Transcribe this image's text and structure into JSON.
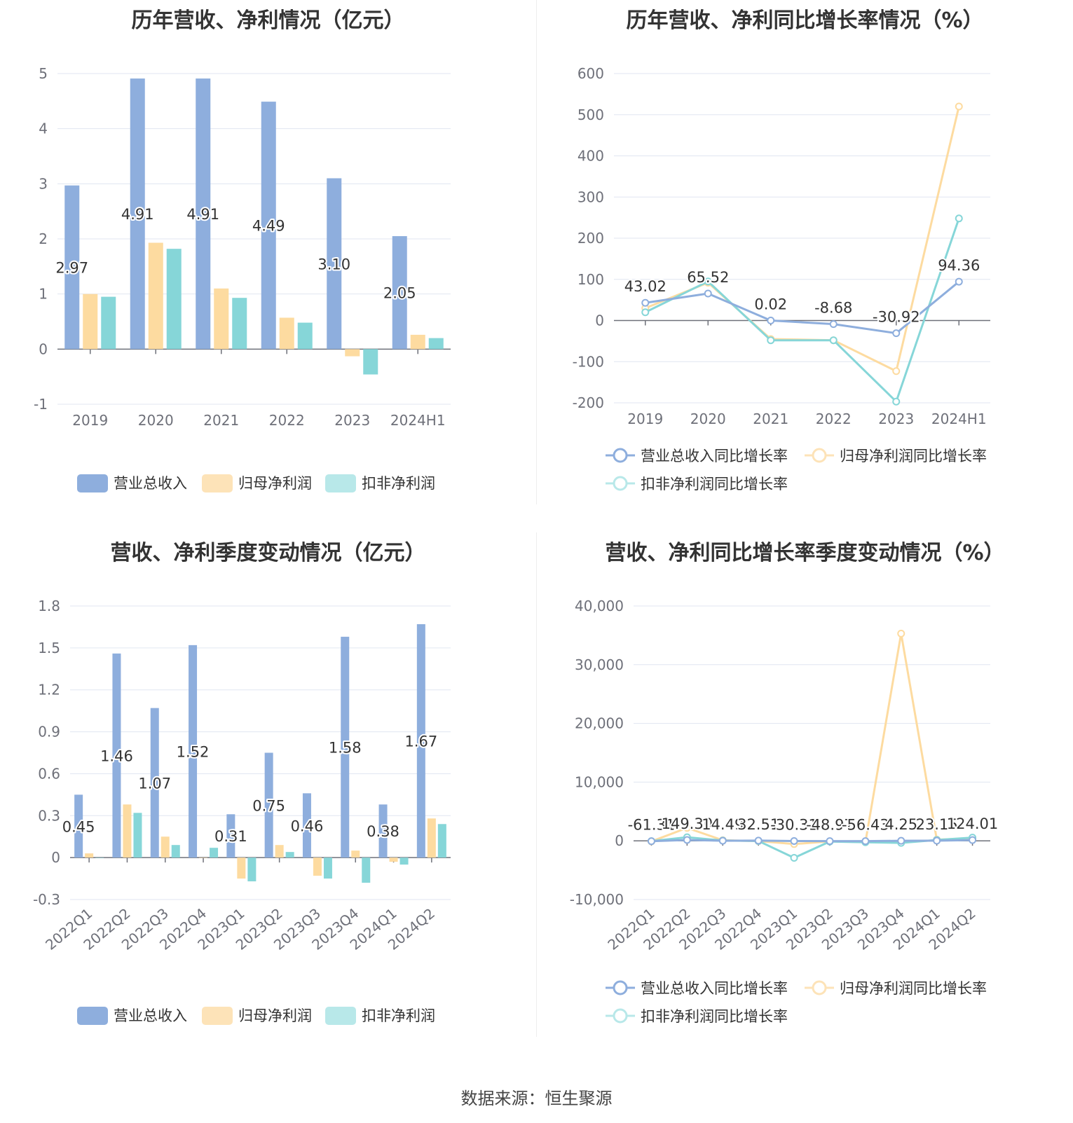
{
  "footer": "数据来源：恒生聚源",
  "colors": {
    "revenue": "#8eaedd",
    "net_profit": "#fddba0",
    "deducted_profit": "#86d6d8",
    "revenue_legend": "#8eaedd",
    "net_profit_legend": "#fde3b8",
    "deducted_legend": "#b8e8e9",
    "grid": "#e0e6f1",
    "axis": "#6e7079"
  },
  "chart_data": [
    {
      "id": "annual_values",
      "type": "bar",
      "title": "历年营收、净利情况（亿元）",
      "categories": [
        "2019",
        "2020",
        "2021",
        "2022",
        "2023",
        "2024H1"
      ],
      "series": [
        {
          "name": "营业总收入",
          "values": [
            2.97,
            4.91,
            4.91,
            4.49,
            3.1,
            2.05
          ],
          "labels": [
            "2.97",
            "4.91",
            "4.91",
            "4.49",
            "3.10",
            "2.05"
          ]
        },
        {
          "name": "归母净利润",
          "values": [
            1.0,
            1.93,
            1.1,
            0.57,
            -0.13,
            0.26
          ]
        },
        {
          "name": "扣非净利润",
          "values": [
            0.95,
            1.82,
            0.93,
            0.48,
            -0.46,
            0.2
          ]
        }
      ],
      "yticks": [
        "-1",
        "0",
        "1",
        "2",
        "3",
        "4",
        "5"
      ],
      "ylim": [
        -1,
        5
      ],
      "legend": "bottom",
      "grid": true
    },
    {
      "id": "annual_growth",
      "type": "line",
      "title": "历年营收、净利同比增长率情况（%）",
      "categories": [
        "2019",
        "2020",
        "2021",
        "2022",
        "2023",
        "2024H1"
      ],
      "series": [
        {
          "name": "营业总收入同比增长率",
          "values": [
            43.02,
            65.52,
            0.02,
            -8.68,
            -30.92,
            94.36
          ],
          "labels": [
            "43.02",
            "65.52",
            "0.02",
            "-8.68",
            "-30.92",
            "94.36"
          ]
        },
        {
          "name": "归母净利润同比增长率",
          "values": [
            30,
            92,
            -45,
            -48,
            -123,
            520
          ]
        },
        {
          "name": "扣非净利润同比增长率",
          "values": [
            20,
            95,
            -48,
            -48,
            -197,
            248
          ]
        }
      ],
      "yticks": [
        "-200",
        "-100",
        "0",
        "100",
        "200",
        "300",
        "400",
        "500",
        "600"
      ],
      "ylim": [
        -200,
        600
      ],
      "legend": "bottom",
      "grid": true
    },
    {
      "id": "quarterly_values",
      "type": "bar",
      "title": "营收、净利季度变动情况（亿元）",
      "categories": [
        "2022Q1",
        "2022Q2",
        "2022Q3",
        "2022Q4",
        "2023Q1",
        "2023Q2",
        "2023Q3",
        "2023Q4",
        "2024Q1",
        "2024Q2"
      ],
      "series": [
        {
          "name": "营业总收入",
          "values": [
            0.45,
            1.46,
            1.07,
            1.52,
            0.31,
            0.75,
            0.46,
            1.58,
            0.38,
            1.67
          ],
          "labels": [
            "0.45",
            "1.46",
            "1.07",
            "1.52",
            "0.31",
            "0.75",
            "0.46",
            "1.58",
            "0.38",
            "1.67"
          ]
        },
        {
          "name": "归母净利润",
          "values": [
            0.03,
            0.38,
            0.15,
            0.0,
            -0.15,
            0.09,
            -0.13,
            0.05,
            -0.03,
            0.28
          ]
        },
        {
          "name": "扣非净利润",
          "values": [
            0.0,
            0.32,
            0.09,
            0.07,
            -0.17,
            0.04,
            -0.15,
            -0.18,
            -0.05,
            0.24
          ]
        }
      ],
      "yticks": [
        "-0.3",
        "0",
        "0.3",
        "0.6",
        "0.9",
        "1.2",
        "1.5",
        "1.8"
      ],
      "ylim": [
        -0.3,
        1.8
      ],
      "legend": "bottom",
      "grid": true
    },
    {
      "id": "quarterly_growth",
      "type": "line",
      "title": "营收、净利同比增长率季度变动情况（%）",
      "categories": [
        "2022Q1",
        "2022Q2",
        "2022Q3",
        "2022Q4",
        "2023Q1",
        "2023Q2",
        "2023Q3",
        "2023Q4",
        "2024Q1",
        "2024Q2"
      ],
      "series": [
        {
          "name": "营业总收入同比增长率",
          "values": [
            -61.31,
            149.3,
            14.49,
            32.51,
            -30.31,
            -48.97,
            -56.43,
            4.25,
            23.15,
            124.01
          ],
          "labels": [
            "-61.31",
            "149.30",
            "14.49",
            "32.51",
            "-30.31",
            "-48.97",
            "-56.43",
            "4.25",
            "23.15",
            "124.01"
          ]
        },
        {
          "name": "归母净利润同比增长率",
          "values": [
            -100,
            2200,
            100,
            -50,
            -550,
            -100,
            -200,
            35300,
            200,
            400
          ]
        },
        {
          "name": "扣非净利润同比增长率",
          "values": [
            -50,
            600,
            50,
            -30,
            -2900,
            -120,
            -250,
            -350,
            150,
            550
          ]
        }
      ],
      "yticks": [
        "-10,000",
        "0",
        "10,000",
        "20,000",
        "30,000",
        "40,000"
      ],
      "ylim": [
        -10000,
        40000
      ],
      "legend": "bottom",
      "grid": true
    }
  ]
}
